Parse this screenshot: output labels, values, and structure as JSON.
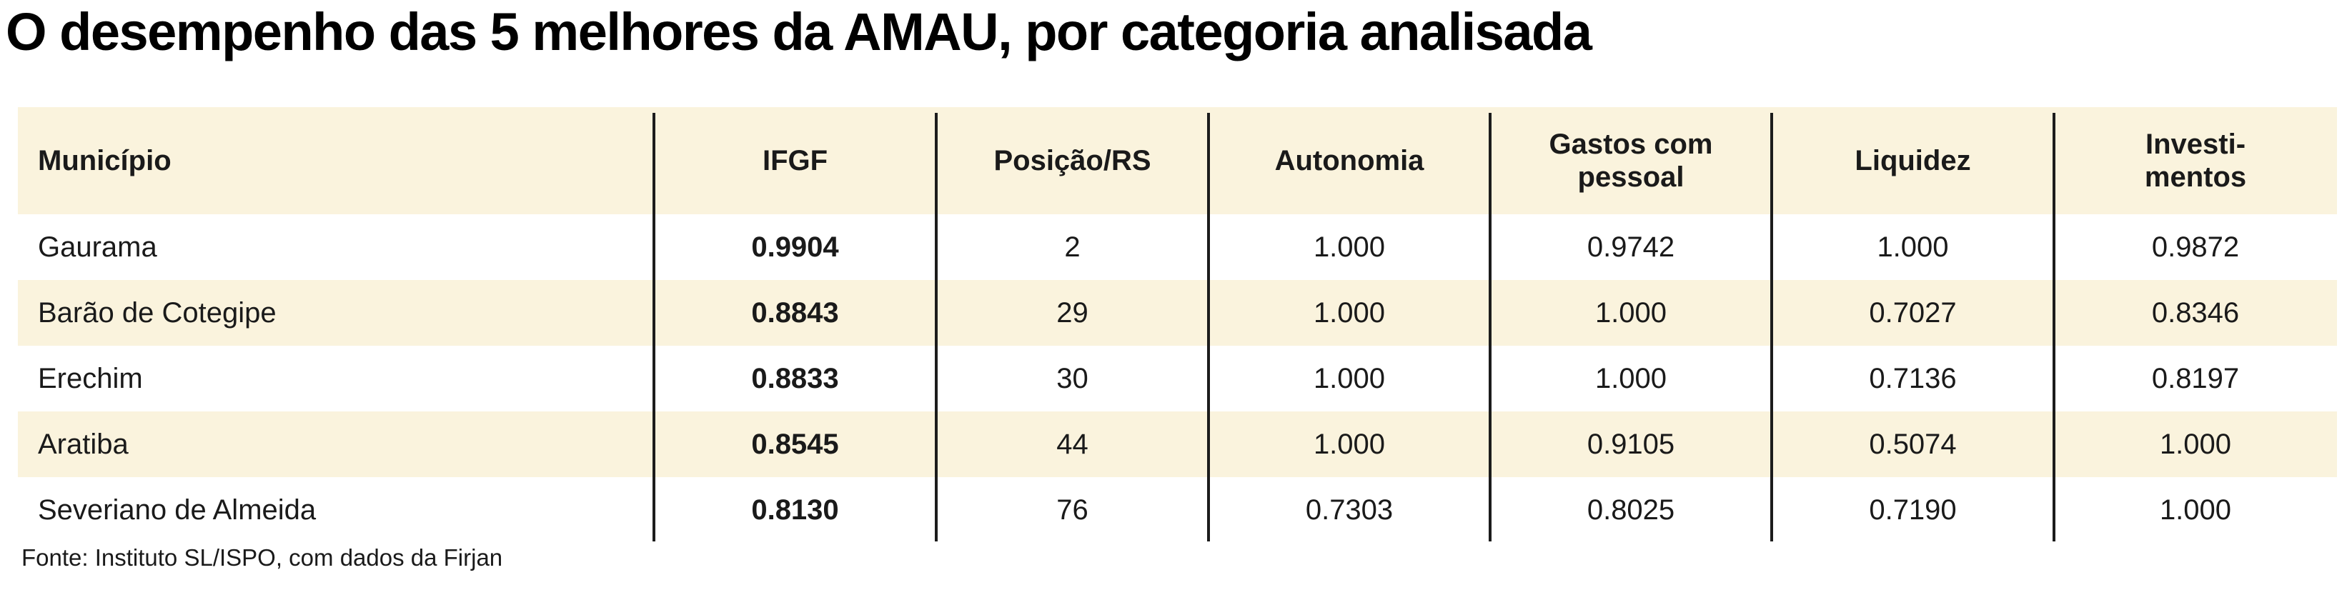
{
  "title": "O desempenho das 5 melhores da AMAU, por categoria analisada",
  "table": {
    "columns": [
      "Município",
      "IFGF",
      "Posição/RS",
      "Autonomia",
      "Gastos com\npessoal",
      "Liquidez",
      "Investi-\nmentos"
    ],
    "rows": [
      {
        "municipio": "Gaurama",
        "ifgf": "0.9904",
        "posicao_rs": "2",
        "autonomia": "1.000",
        "gastos_com_pessoal": "0.9742",
        "liquidez": "1.000",
        "investimentos": "0.9872"
      },
      {
        "municipio": "Barão de Cotegipe",
        "ifgf": "0.8843",
        "posicao_rs": "29",
        "autonomia": "1.000",
        "gastos_com_pessoal": "1.000",
        "liquidez": "0.7027",
        "investimentos": "0.8346"
      },
      {
        "municipio": "Erechim",
        "ifgf": "0.8833",
        "posicao_rs": "30",
        "autonomia": "1.000",
        "gastos_com_pessoal": "1.000",
        "liquidez": "0.7136",
        "investimentos": "0.8197"
      },
      {
        "municipio": "Aratiba",
        "ifgf": "0.8545",
        "posicao_rs": "44",
        "autonomia": "1.000",
        "gastos_com_pessoal": "0.9105",
        "liquidez": "0.5074",
        "investimentos": "1.000"
      },
      {
        "municipio": "Severiano de Almeida",
        "ifgf": "0.8130",
        "posicao_rs": "76",
        "autonomia": "0.7303",
        "gastos_com_pessoal": "0.8025",
        "liquidez": "0.7190",
        "investimentos": "1.000"
      }
    ]
  },
  "source": "Fonte: Instituto SL/ISPO, com dados da Firjan",
  "colors": {
    "band_bg": "#FAF3DD",
    "text": "#1a1a1a",
    "line": "#1c1c1c"
  }
}
